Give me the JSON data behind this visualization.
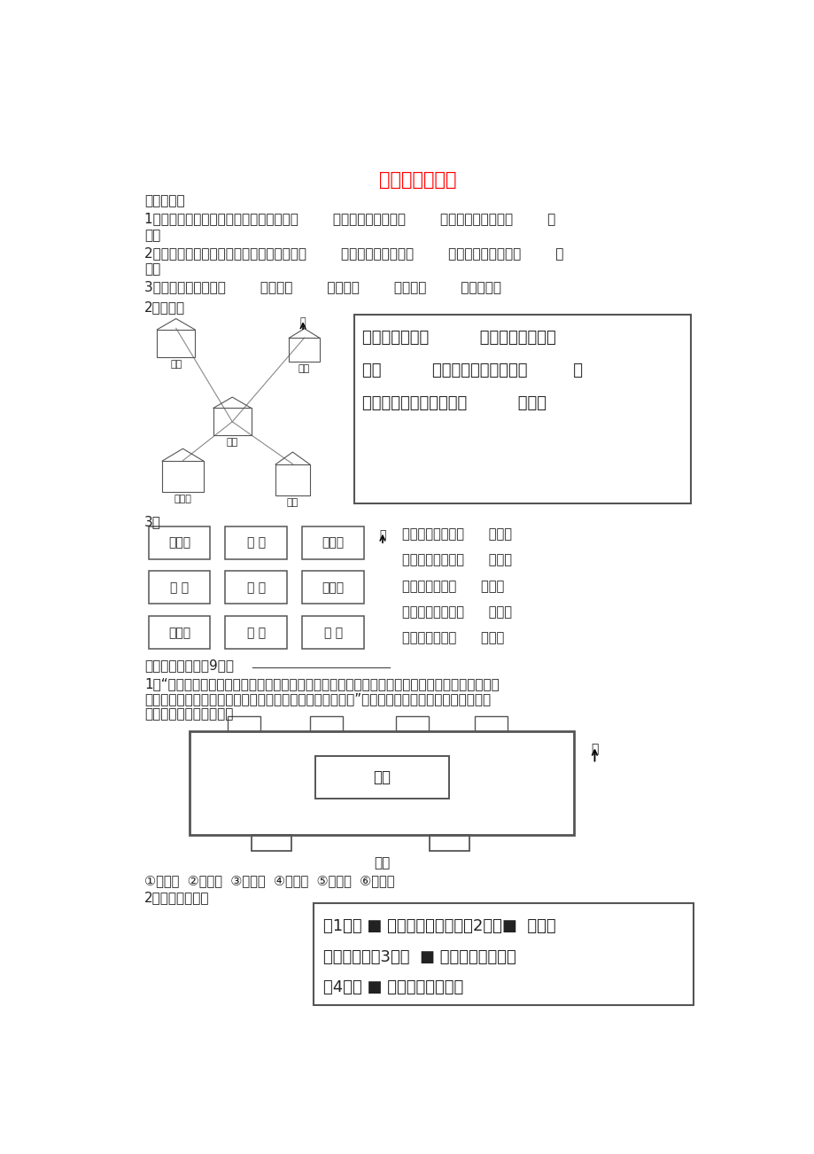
{
  "title": "《位置与方向》",
  "title_color": "#FF0000",
  "bg_color": "#FFFFFF",
  "text_color": "#333333",
  "section1_title": "一、填空：",
  "q1": "1、早晨，当你面对太阳时，你的后面是（        ）面，你的左面是（        ）面，你的右面是（        ）",
  "q1b": "面。",
  "q2": "2、晚上，当你面对北极星时，你的后面是（        ）面，你的左面是（        ）面，你的右面是（        ）",
  "q2b": "面。",
  "q3": "3、地图通常是按上（        ）、下（        ）、左（        ）、右（        ）绘制的。",
  "q4_title": "2、填一填",
  "q4_text1": "邮局在学校的（          ）面；超市在学校",
  "q4_text2": "的（          ）面；书店在学校的（         ）",
  "q4_text3": "面；碧海园在书店的是（          ）面。",
  "section3_title": "3、",
  "grid_labels": [
    "少年宫",
    "商 店",
    "图书馆",
    "电 院",
    "学 校",
    "体育馆",
    "动物园",
    "邮 局",
    "医 院"
  ],
  "grid_questions": [
    "体育馆在学校的（      ）面，",
    "少年宫在学校的（      ）面。",
    "商店在学校的（      ）面，",
    "电影院在学校的（      ）面，",
    "邮局在学校的（      ）面，"
  ],
  "section2_title": "二、实践操作：（9分）",
  "q_practice_lines": [
    "1、“走进科技馆大门，在展厅的正北面有电脑屋，南面有气象馆，在展厅的东北面有环保屋，西北",
    "面有天文馆，在展厅有东南面有生物馆，西南面有航模馆。”请你根据小亮的描述，把这些馆名的",
    "符号填在适当的位置上。"
  ],
  "exhibition_label": "展厅",
  "gate_label": "大门",
  "north_label": "北",
  "legend_text": "①环保屋  ②电脑屋  ③天文馆  ④航模馆  ⑤气象馆  ⑥生物馆",
  "q_color": "2、按要求途色。",
  "color_box_text1": "（1）在 ■ 的东南面途红色；（2）在■  的东北",
  "color_box_text2": "面途黄色；（3）在  ■ 的西南面途蓝色；",
  "color_box_text3": "（4）在 ■ 的西北面途维色。"
}
